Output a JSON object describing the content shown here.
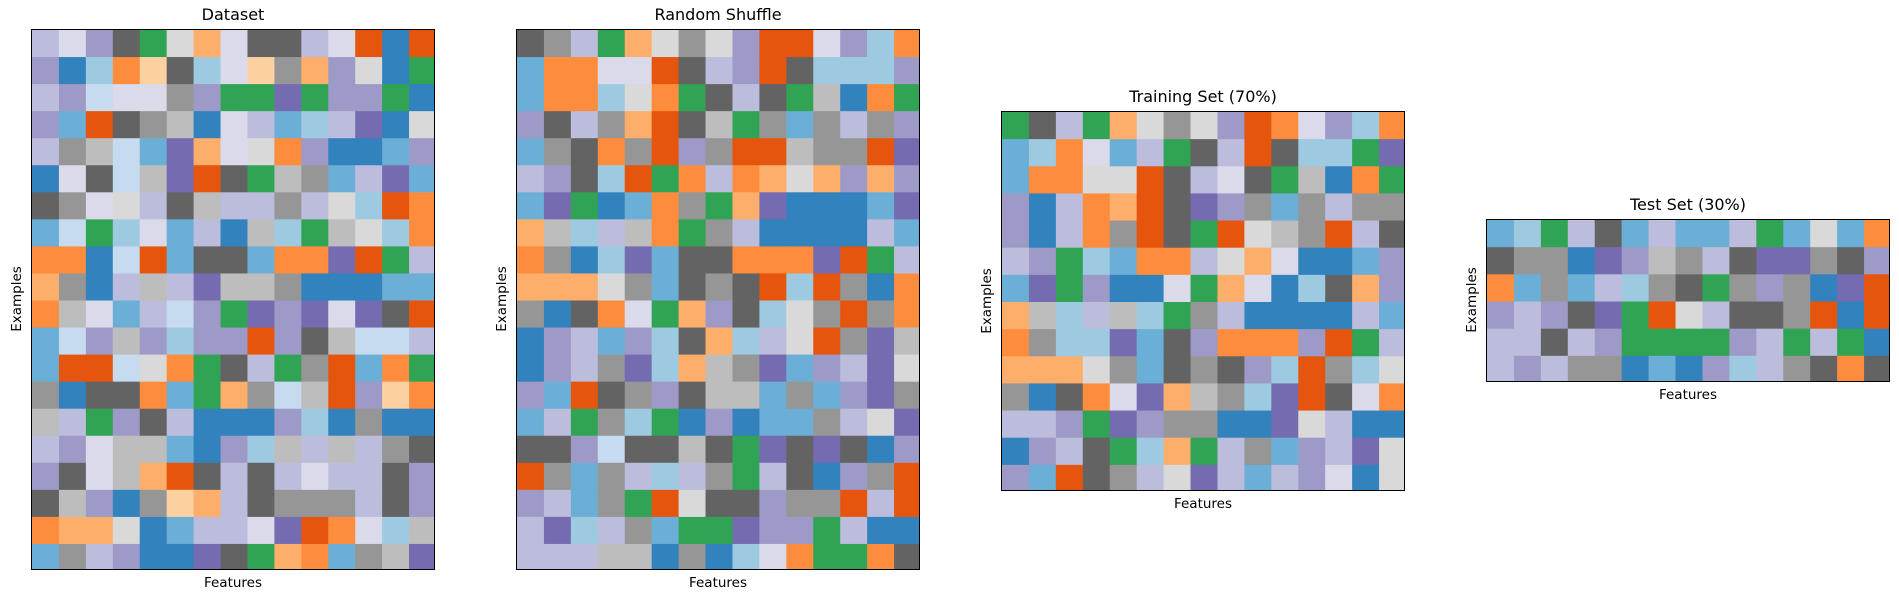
{
  "chart_data": [
    {
      "type": "heatmap",
      "title": "Dataset",
      "xlabel": "Features",
      "ylabel": "Examples",
      "rows": 20,
      "cols": 15,
      "grid": [
        [
          14,
          15,
          13,
          16,
          8,
          19,
          6,
          15,
          16,
          16,
          14,
          15,
          4,
          0,
          4
        ],
        [
          13,
          0,
          2,
          5,
          7,
          16,
          2,
          15,
          7,
          17,
          6,
          13,
          19,
          0,
          8
        ],
        [
          14,
          13,
          3,
          15,
          15,
          17,
          13,
          8,
          8,
          12,
          8,
          13,
          13,
          8,
          0
        ],
        [
          13,
          1,
          4,
          16,
          17,
          18,
          0,
          15,
          14,
          1,
          2,
          14,
          12,
          0,
          19
        ],
        [
          14,
          17,
          18,
          3,
          1,
          12,
          6,
          15,
          19,
          5,
          13,
          0,
          0,
          1,
          13
        ],
        [
          0,
          15,
          16,
          3,
          18,
          12,
          4,
          16,
          8,
          18,
          17,
          1,
          14,
          12,
          1
        ],
        [
          16,
          17,
          15,
          19,
          14,
          16,
          18,
          14,
          14,
          17,
          14,
          19,
          2,
          4,
          5
        ],
        [
          1,
          3,
          8,
          2,
          15,
          1,
          14,
          0,
          18,
          2,
          8,
          18,
          19,
          2,
          5
        ],
        [
          5,
          5,
          0,
          3,
          4,
          1,
          16,
          16,
          1,
          5,
          5,
          12,
          4,
          8,
          14
        ],
        [
          6,
          17,
          0,
          14,
          18,
          14,
          12,
          18,
          18,
          17,
          0,
          0,
          0,
          1,
          1
        ],
        [
          5,
          18,
          15,
          1,
          14,
          3,
          13,
          8,
          12,
          13,
          12,
          15,
          12,
          16,
          4
        ],
        [
          1,
          3,
          13,
          18,
          13,
          2,
          13,
          13,
          4,
          13,
          16,
          18,
          3,
          3,
          14
        ],
        [
          1,
          4,
          4,
          3,
          19,
          5,
          8,
          16,
          14,
          8,
          17,
          4,
          1,
          5,
          8
        ],
        [
          17,
          0,
          16,
          16,
          5,
          1,
          8,
          6,
          17,
          3,
          18,
          4,
          13,
          7,
          5
        ],
        [
          18,
          14,
          8,
          13,
          16,
          14,
          0,
          0,
          0,
          13,
          2,
          0,
          17,
          0,
          0
        ],
        [
          14,
          13,
          15,
          18,
          18,
          1,
          0,
          13,
          2,
          18,
          14,
          18,
          14,
          17,
          16
        ],
        [
          13,
          16,
          15,
          18,
          6,
          4,
          16,
          14,
          16,
          14,
          15,
          14,
          14,
          16,
          13
        ],
        [
          16,
          18,
          13,
          0,
          17,
          7,
          6,
          14,
          16,
          17,
          17,
          17,
          14,
          16,
          13
        ],
        [
          5,
          6,
          6,
          19,
          0,
          1,
          14,
          14,
          15,
          12,
          4,
          5,
          15,
          2,
          18
        ],
        [
          1,
          17,
          14,
          13,
          0,
          0,
          12,
          16,
          8,
          6,
          5,
          1,
          17,
          18,
          12
        ]
      ]
    },
    {
      "type": "heatmap",
      "title": "Random Shuffle",
      "xlabel": "Features",
      "ylabel": "Examples",
      "rows": 20,
      "cols": 15,
      "grid": [
        [
          16,
          17,
          14,
          8,
          6,
          19,
          17,
          19,
          13,
          4,
          4,
          15,
          13,
          2,
          5
        ],
        [
          1,
          5,
          5,
          15,
          15,
          4,
          16,
          14,
          13,
          4,
          16,
          2,
          2,
          2,
          13
        ],
        [
          1,
          5,
          5,
          2,
          19,
          5,
          8,
          16,
          14,
          16,
          8,
          18,
          0,
          5,
          8
        ],
        [
          13,
          16,
          14,
          17,
          6,
          4,
          16,
          18,
          8,
          17,
          1,
          17,
          14,
          17,
          13
        ],
        [
          1,
          17,
          16,
          5,
          17,
          4,
          13,
          17,
          4,
          4,
          18,
          17,
          17,
          4,
          12
        ],
        [
          14,
          13,
          16,
          2,
          4,
          8,
          5,
          14,
          5,
          6,
          19,
          6,
          13,
          6,
          13
        ],
        [
          1,
          12,
          8,
          0,
          1,
          5,
          17,
          8,
          6,
          12,
          0,
          0,
          0,
          1,
          12
        ],
        [
          6,
          18,
          2,
          14,
          18,
          5,
          8,
          17,
          14,
          0,
          0,
          0,
          0,
          14,
          1
        ],
        [
          5,
          17,
          0,
          2,
          12,
          1,
          16,
          16,
          5,
          5,
          5,
          12,
          4,
          8,
          14
        ],
        [
          6,
          6,
          6,
          19,
          17,
          1,
          16,
          17,
          16,
          4,
          2,
          4,
          17,
          0,
          5
        ],
        [
          17,
          0,
          16,
          5,
          15,
          8,
          6,
          13,
          16,
          2,
          19,
          17,
          4,
          17,
          5
        ],
        [
          0,
          13,
          14,
          1,
          13,
          2,
          16,
          6,
          2,
          14,
          19,
          4,
          17,
          12,
          18
        ],
        [
          0,
          13,
          14,
          17,
          12,
          2,
          6,
          18,
          17,
          12,
          1,
          13,
          14,
          12,
          19
        ],
        [
          13,
          1,
          4,
          16,
          17,
          13,
          16,
          18,
          18,
          1,
          17,
          1,
          13,
          12,
          17
        ],
        [
          1,
          14,
          8,
          17,
          2,
          8,
          0,
          13,
          0,
          1,
          1,
          17,
          14,
          19,
          12
        ],
        [
          16,
          16,
          13,
          3,
          16,
          16,
          18,
          16,
          8,
          12,
          16,
          12,
          16,
          0,
          13
        ],
        [
          4,
          17,
          1,
          17,
          14,
          2,
          14,
          17,
          8,
          14,
          16,
          0,
          13,
          17,
          4
        ],
        [
          13,
          14,
          1,
          17,
          8,
          4,
          19,
          16,
          16,
          13,
          17,
          17,
          4,
          14,
          4
        ],
        [
          14,
          12,
          2,
          14,
          17,
          1,
          8,
          8,
          12,
          13,
          13,
          8,
          14,
          0,
          0
        ],
        [
          14,
          14,
          14,
          18,
          18,
          0,
          17,
          0,
          2,
          15,
          5,
          8,
          8,
          5,
          16
        ]
      ]
    },
    {
      "type": "heatmap",
      "title": "Training Set (70%)",
      "xlabel": "Features",
      "ylabel": "Examples",
      "rows": 14,
      "cols": 15,
      "grid": [
        [
          8,
          16,
          14,
          8,
          6,
          19,
          17,
          19,
          13,
          4,
          5,
          15,
          13,
          2,
          5
        ],
        [
          1,
          2,
          5,
          15,
          1,
          14,
          8,
          16,
          14,
          4,
          16,
          2,
          2,
          8,
          12
        ],
        [
          1,
          5,
          5,
          19,
          19,
          4,
          16,
          14,
          15,
          16,
          8,
          18,
          0,
          5,
          8
        ],
        [
          13,
          0,
          14,
          5,
          6,
          4,
          16,
          12,
          13,
          17,
          1,
          17,
          14,
          17,
          17
        ],
        [
          13,
          0,
          14,
          5,
          17,
          4,
          16,
          8,
          4,
          19,
          18,
          17,
          4,
          14,
          16
        ],
        [
          14,
          13,
          8,
          2,
          1,
          5,
          5,
          14,
          19,
          6,
          15,
          0,
          0,
          1,
          13
        ],
        [
          1,
          12,
          8,
          13,
          0,
          0,
          15,
          8,
          6,
          15,
          0,
          2,
          16,
          6,
          13
        ],
        [
          6,
          18,
          2,
          14,
          18,
          2,
          8,
          17,
          14,
          0,
          0,
          0,
          0,
          14,
          1
        ],
        [
          5,
          17,
          2,
          2,
          12,
          1,
          16,
          13,
          5,
          5,
          5,
          13,
          4,
          8,
          14
        ],
        [
          6,
          6,
          6,
          19,
          17,
          1,
          16,
          17,
          16,
          13,
          2,
          4,
          17,
          2,
          19
        ],
        [
          17,
          0,
          16,
          5,
          15,
          12,
          6,
          18,
          17,
          2,
          12,
          4,
          16,
          15,
          5
        ],
        [
          14,
          14,
          13,
          8,
          12,
          13,
          17,
          17,
          0,
          0,
          12,
          19,
          14,
          0,
          0
        ],
        [
          0,
          13,
          14,
          16,
          8,
          2,
          6,
          8,
          14,
          17,
          1,
          13,
          14,
          12,
          19
        ],
        [
          13,
          1,
          4,
          16,
          17,
          14,
          19,
          12,
          14,
          1,
          14,
          13,
          15,
          0,
          19
        ]
      ]
    },
    {
      "type": "heatmap",
      "title": "Test Set (30%)",
      "xlabel": "Features",
      "ylabel": "Examples",
      "rows": 6,
      "cols": 15,
      "grid": [
        [
          1,
          2,
          8,
          14,
          16,
          1,
          14,
          1,
          1,
          14,
          8,
          1,
          19,
          1,
          5
        ],
        [
          16,
          17,
          17,
          0,
          12,
          13,
          18,
          17,
          14,
          16,
          12,
          12,
          17,
          16,
          13
        ],
        [
          5,
          1,
          17,
          1,
          14,
          2,
          17,
          16,
          8,
          17,
          13,
          17,
          0,
          12,
          4
        ],
        [
          13,
          14,
          13,
          16,
          12,
          8,
          4,
          19,
          14,
          16,
          16,
          17,
          4,
          0,
          4
        ],
        [
          14,
          14,
          16,
          14,
          13,
          8,
          8,
          8,
          8,
          13,
          14,
          8,
          14,
          8,
          0
        ],
        [
          14,
          13,
          14,
          17,
          17,
          0,
          1,
          0,
          13,
          2,
          14,
          17,
          16,
          5,
          16
        ]
      ]
    }
  ],
  "colors": [
    "#3182bd",
    "#6baed6",
    "#9ecae1",
    "#c6dbef",
    "#e6550d",
    "#fd8d3c",
    "#fdae6b",
    "#fdd0a2",
    "#31a354",
    "#74c476",
    "#a1d99b",
    "#c7e9c0",
    "#756bb1",
    "#9e9ac8",
    "#bcbddc",
    "#dadaeb",
    "#636363",
    "#969696",
    "#bdbdbd",
    "#d9d9d9"
  ]
}
